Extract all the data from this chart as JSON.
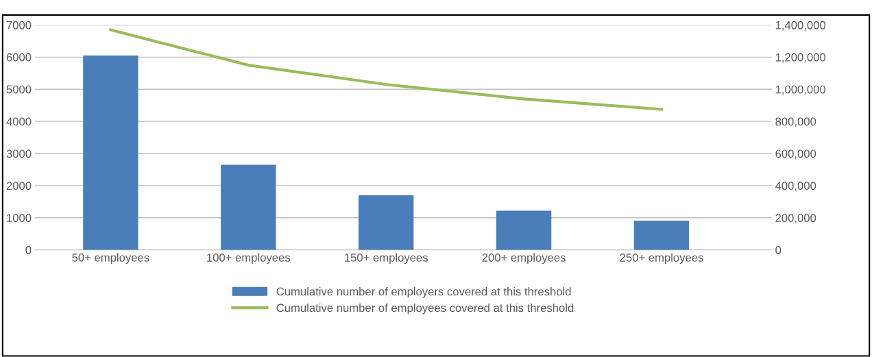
{
  "chart_data": {
    "type": "bar",
    "categories": [
      "50+ employees",
      "100+ employees",
      "150+ employees",
      "200+ employees",
      "250+ employees"
    ],
    "series": [
      {
        "name": "Cumulative number of employers covered at this threshold",
        "color": "#4a7ebb",
        "values": [
          6050,
          2650,
          1700,
          1220,
          910
        ]
      },
      {
        "name": "Cumulative number of employees covered at this threshold",
        "type": "line",
        "axis": "y2",
        "color": "#9bbb59",
        "values": [
          1370000,
          1150000,
          1030000,
          940000,
          875000
        ]
      }
    ],
    "ylim": [
      0,
      7000
    ],
    "yticks": [
      0,
      1000,
      2000,
      3000,
      4000,
      5000,
      6000,
      7000
    ],
    "y2lim": [
      0,
      1400000
    ],
    "y2ticks": [
      {
        "value": 0,
        "label": "0"
      },
      {
        "value": 200000,
        "label": "200,000"
      },
      {
        "value": 400000,
        "label": "400,000"
      },
      {
        "value": 600000,
        "label": "600,000"
      },
      {
        "value": 800000,
        "label": "800,000"
      },
      {
        "value": 1000000,
        "label": "1,000,000"
      },
      {
        "value": 1200000,
        "label": "1,200,000"
      },
      {
        "value": 1400000,
        "label": "1,400,000"
      }
    ],
    "grid": "y",
    "legend": "bottom"
  }
}
